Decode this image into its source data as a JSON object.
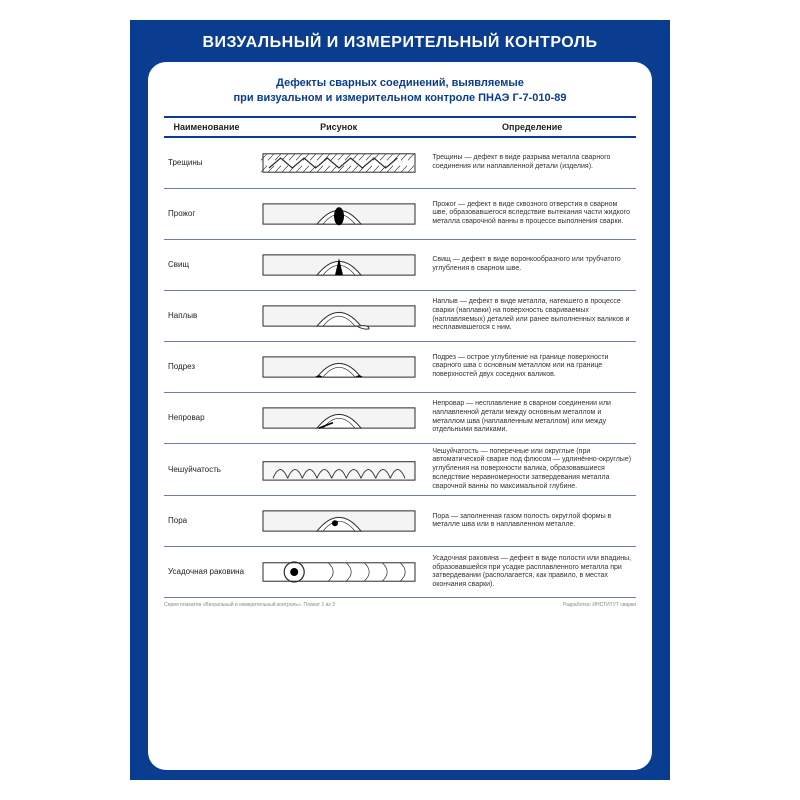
{
  "colors": {
    "poster_bg": "#0a3d8f",
    "panel_bg": "#ffffff",
    "rule": "#6b7da8",
    "text": "#333333",
    "stroke": "#2b2b2b",
    "hatch": "#555555",
    "fill_light": "#e8e8e8"
  },
  "title": "ВИЗУАЛЬНЫЙ И ИЗМЕРИТЕЛЬНЫЙ КОНТРОЛЬ",
  "subtitle_l1": "Дефекты сварных соединений, выявляемые",
  "subtitle_l2": "при визуальном и измерительном контроле ПНАЭ Г-7-010-89",
  "headers": {
    "name": "Наименование",
    "drawing": "Рисунок",
    "definition": "Определение"
  },
  "rows": [
    {
      "name": "Трещины",
      "definition": "Трещины — дефект в виде разрыва металла сварного соединения или наплавленной детали (изделия).",
      "fig": "crack"
    },
    {
      "name": "Прожог",
      "definition": "Прожог — дефект в виде сквозного отверстия в сварном шве, образовавшегося вследствие вытекания части жидкого металла сварочной ванны в процессе выполнения сварки.",
      "fig": "burn"
    },
    {
      "name": "Свищ",
      "definition": "Свищ — дефект в виде воронкообразного или трубчатого углубления в сварном шве.",
      "fig": "fistula"
    },
    {
      "name": "Наплыв",
      "definition": "Наплыв — дефект в виде металла, натекшего в процессе сварки (наплавки) на поверхность свариваемых (наплавляемых) деталей или ранее выполненных валиков и несплавившегося с ним.",
      "fig": "overflow"
    },
    {
      "name": "Подрез",
      "definition": "Подрез — острое углубление на границе поверхности сварного шва с основным металлом или на границе поверхностей двух соседних валиков.",
      "fig": "undercut"
    },
    {
      "name": "Непровар",
      "definition": "Непровар — несплавление в сварном соединении или наплавленной детали между основным металлом и металлом шва (наплавленным металлом) или между отдельными валиками.",
      "fig": "lack"
    },
    {
      "name": "Чешуйчатость",
      "definition": "Чешуйчатость — поперечные или округлые (при автоматической сварке под флюсом — удлинённо-округлые) углубления на поверхности валика, образовавшиеся вследствие неравномерности затвердевания металла сварочной ванны по максимальной глубине.",
      "fig": "scale"
    },
    {
      "name": "Пора",
      "definition": "Пора — заполненная газом полость округлой формы в металле шва или в наплавленном металле.",
      "fig": "pore"
    },
    {
      "name": "Усадочная раковина",
      "definition": "Усадочная раковина — дефект в виде полости или впадины, образовавшейся при усадке расплавленного металла при затвердевании (располагается, как правило, в местах окончания сварки).",
      "fig": "shrink"
    }
  ],
  "footer": {
    "left": "Серия плакатов «Визуальный и измерительный контроль». Плакат 1 из 3",
    "right": "Разработка: ИНСТИТУТ сварки"
  },
  "fig_size": {
    "w": 160,
    "h": 46
  }
}
